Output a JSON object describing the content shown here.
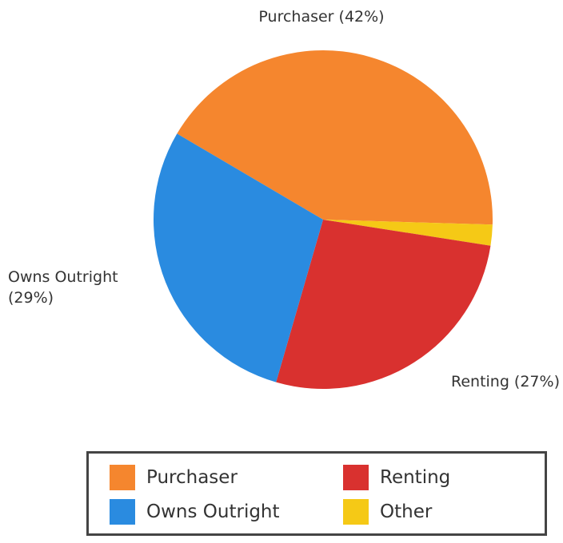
{
  "chart_data": {
    "type": "pie",
    "categories": [
      "Purchaser",
      "Renting",
      "Owns Outright",
      "Other"
    ],
    "values": [
      42,
      27,
      29,
      2
    ],
    "value_labels": [
      "Purchaser (42%)",
      "Renting (27%)",
      "Owns Outright (29%)",
      null
    ],
    "colors": [
      "#f5862e",
      "#d9312f",
      "#2a8be0",
      "#f5c916"
    ],
    "legend": "bottom"
  }
}
